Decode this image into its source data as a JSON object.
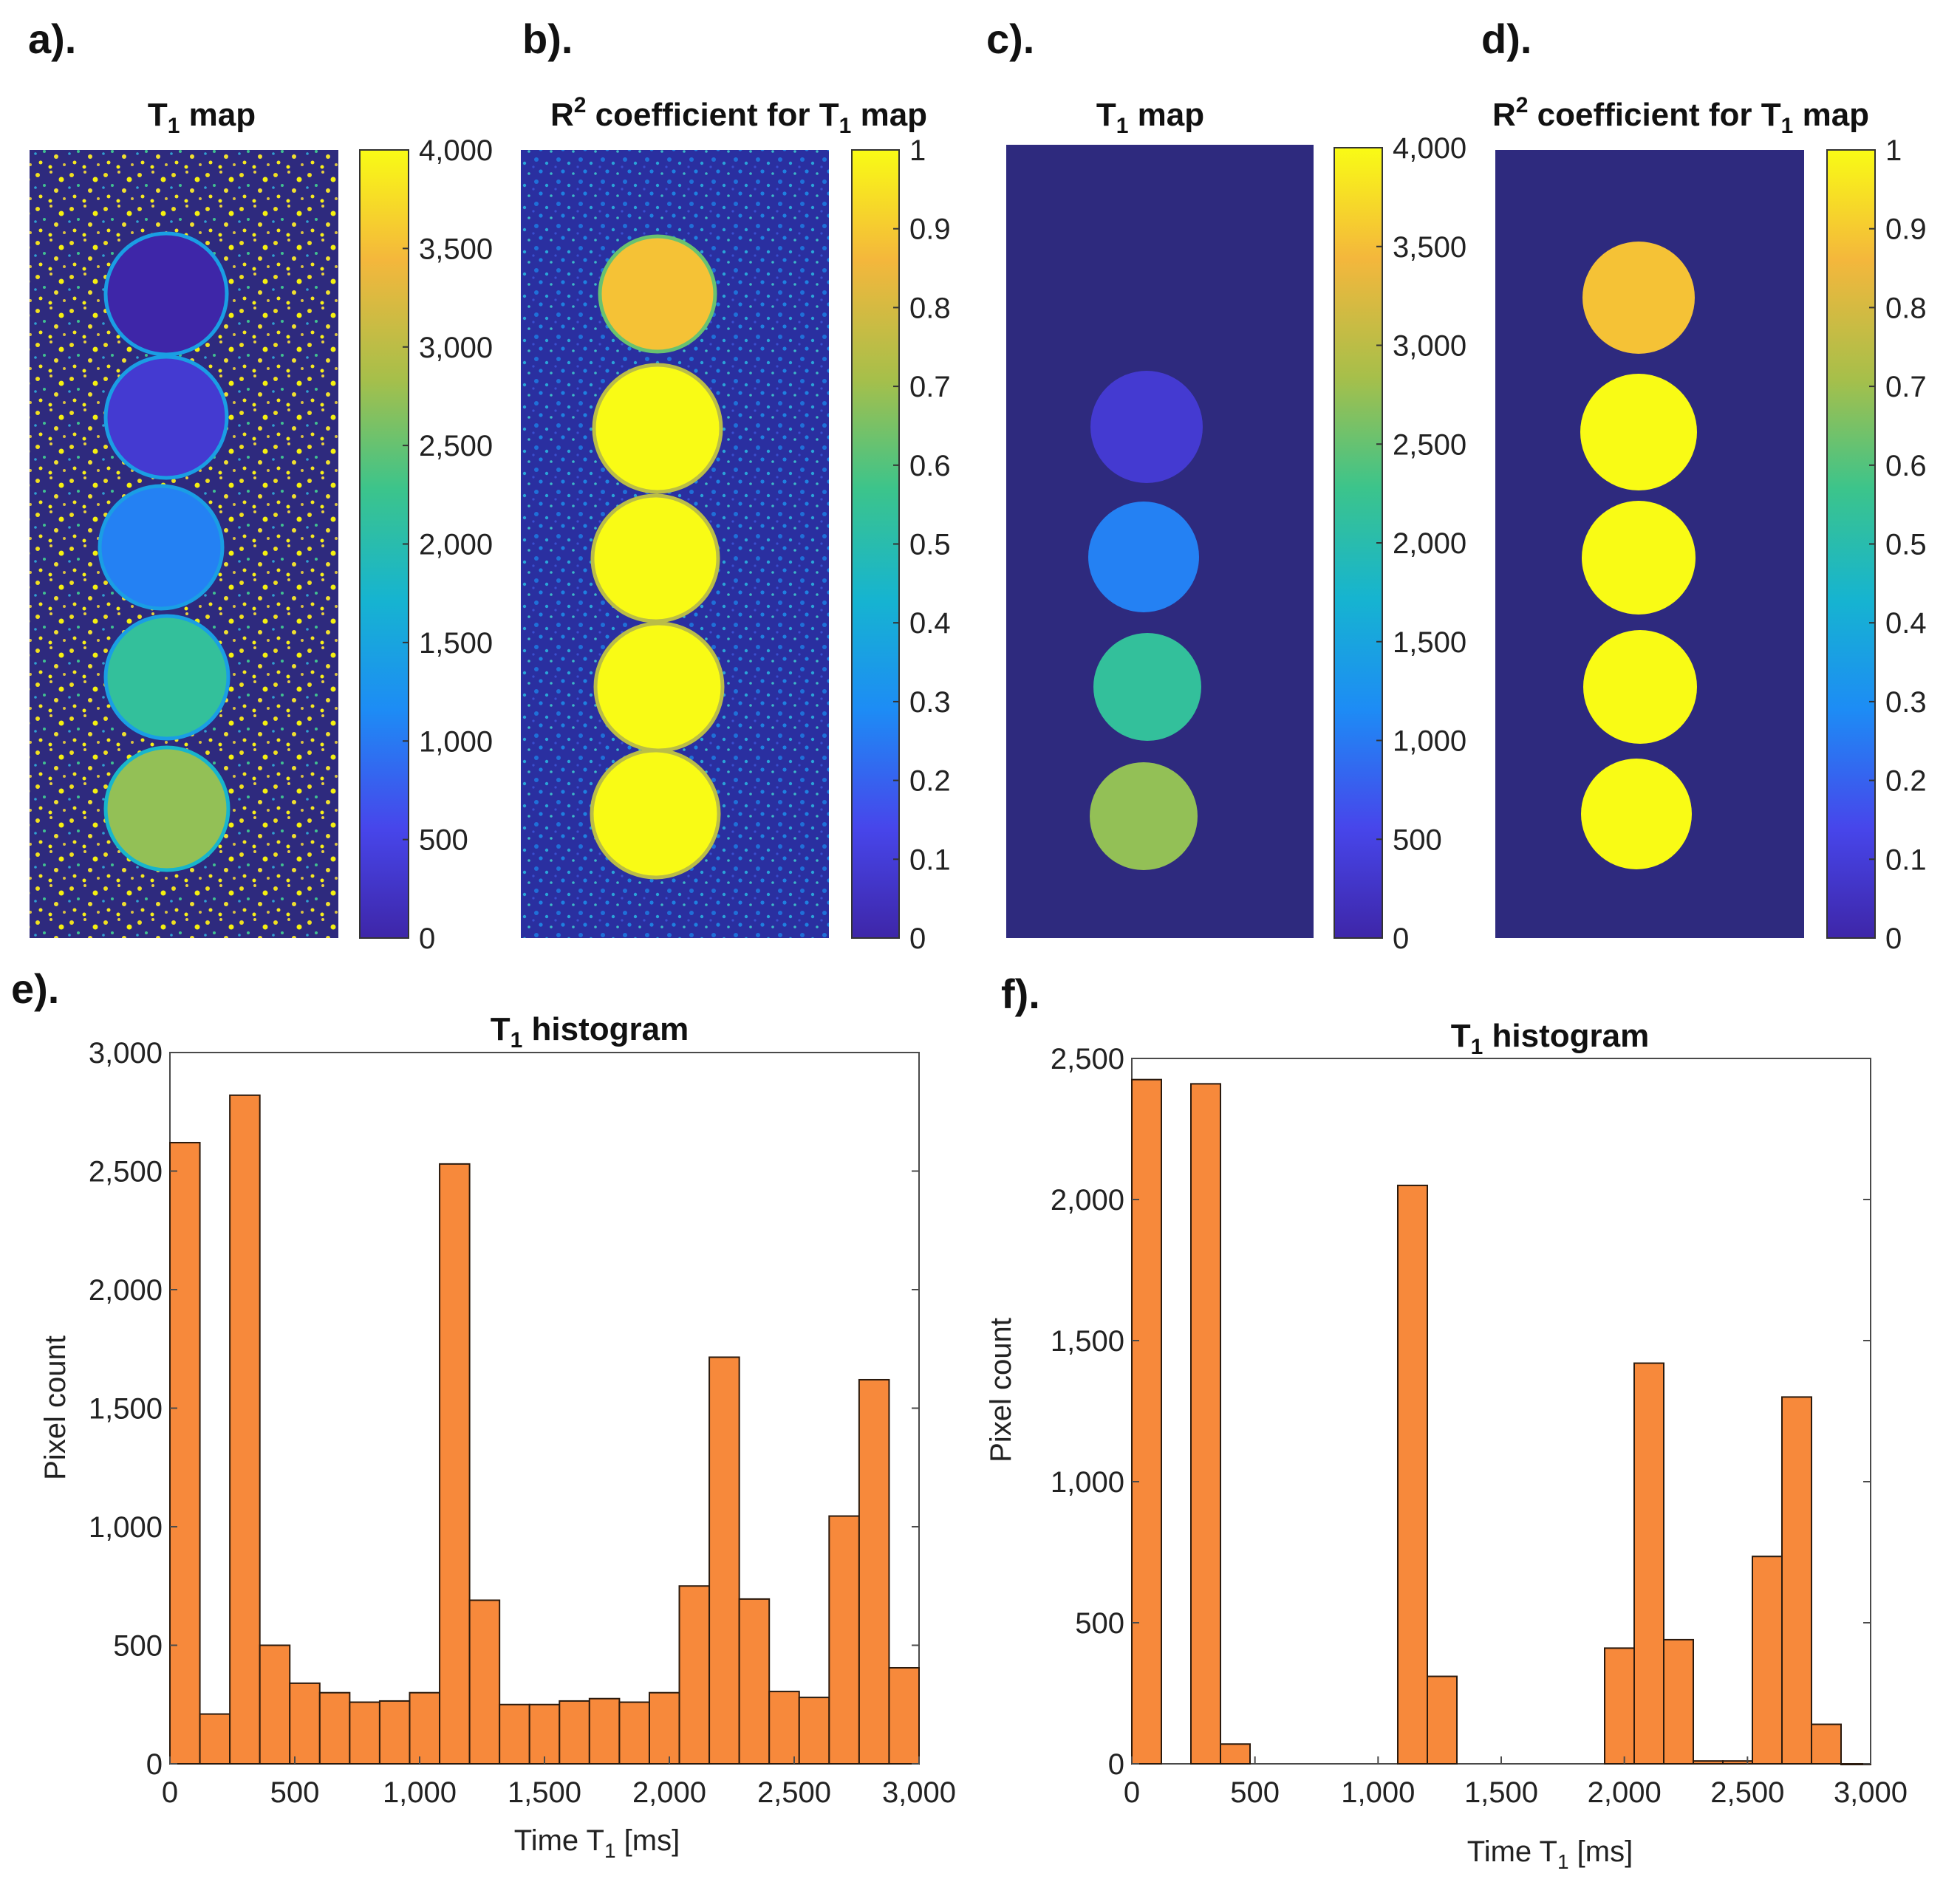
{
  "colors": {
    "background_dark": "#2e2a7e",
    "bar_fill": "#f7893b",
    "bar_stroke": "#2a1a0e",
    "colormap": [
      "#3e26a8",
      "#4746eb",
      "#1d8cf5",
      "#16b4d0",
      "#3cc48b",
      "#a7bf4a",
      "#f4b73c",
      "#f9fb15"
    ]
  },
  "panels": {
    "a": {
      "label": "a).",
      "title_main": "T",
      "title_sub": "1",
      "title_rest": " map",
      "colorbar_ticks": [
        "0",
        "500",
        "1,000",
        "1,500",
        "2,000",
        "2,500",
        "3,000",
        "3,500",
        "4,000"
      ],
      "colorbar_range": [
        0,
        4000
      ],
      "circle_values": [
        0,
        350,
        1050,
        2150,
        2750
      ]
    },
    "b": {
      "label": "b).",
      "title_main": "R",
      "title_sup": "2",
      "title_mid": " coefficient for T",
      "title_sub": "1",
      "title_rest": " map",
      "colorbar_ticks": [
        "0",
        "0.1",
        "0.2",
        "0.3",
        "0.4",
        "0.5",
        "0.6",
        "0.7",
        "0.8",
        "0.9",
        "1"
      ],
      "colorbar_range": [
        0,
        1
      ],
      "circle_values": [
        0.88,
        1,
        1,
        1,
        1
      ]
    },
    "c": {
      "label": "c).",
      "title_main": "T",
      "title_sub": "1",
      "title_rest": " map",
      "colorbar_ticks": [
        "0",
        "500",
        "1,000",
        "1,500",
        "2,000",
        "2,500",
        "3,000",
        "3,500",
        "4,000"
      ],
      "colorbar_range": [
        0,
        4000
      ],
      "circle_values": [
        0,
        350,
        1050,
        2150,
        2750
      ]
    },
    "d": {
      "label": "d).",
      "title_main": "R",
      "title_sup": "2",
      "title_mid": " coefficient for T",
      "title_sub": "1",
      "title_rest": " map",
      "colorbar_ticks": [
        "0",
        "0.1",
        "0.2",
        "0.3",
        "0.4",
        "0.5",
        "0.6",
        "0.7",
        "0.8",
        "0.9",
        "1"
      ],
      "colorbar_range": [
        0,
        1
      ],
      "circle_values": [
        0.88,
        1,
        1,
        1,
        1
      ]
    }
  },
  "chart_data": [
    {
      "id": "e",
      "label": "e).",
      "type": "bar",
      "title_main": "T",
      "title_sub": "1",
      "title_rest": " histogram",
      "xlabel_main": "Time T",
      "xlabel_sub": "1",
      "xlabel_rest": " [ms]",
      "ylabel": "Pixel count",
      "xlim": [
        0,
        3000
      ],
      "ylim": [
        0,
        3000
      ],
      "xticks": [
        "0",
        "500",
        "1,000",
        "1,500",
        "2,000",
        "2,500",
        "3,000"
      ],
      "yticks": [
        "0",
        "500",
        "1,000",
        "1,500",
        "2,000",
        "2,500",
        "3,000"
      ],
      "bin_width": 120,
      "bin_starts": [
        0,
        120,
        240,
        360,
        480,
        600,
        720,
        840,
        960,
        1080,
        1200,
        1320,
        1440,
        1560,
        1680,
        1800,
        1920,
        2040,
        2160,
        2280,
        2400,
        2520,
        2640,
        2760,
        2880
      ],
      "values": [
        2620,
        210,
        2820,
        500,
        340,
        300,
        260,
        265,
        300,
        2530,
        690,
        250,
        250,
        265,
        275,
        260,
        300,
        750,
        1715,
        695,
        305,
        280,
        1045,
        1620,
        405
      ]
    },
    {
      "id": "f",
      "label": "f).",
      "type": "bar",
      "title_main": "T",
      "title_sub": "1",
      "title_rest": " histogram",
      "xlabel_main": "Time T",
      "xlabel_sub": "1",
      "xlabel_rest": " [ms]",
      "ylabel": "Pixel count",
      "xlim": [
        0,
        3000
      ],
      "ylim": [
        0,
        2500
      ],
      "xticks": [
        "0",
        "500",
        "1,000",
        "1,500",
        "2,000",
        "2,500",
        "3,000"
      ],
      "yticks": [
        "0",
        "500",
        "1,000",
        "1,500",
        "2,000",
        "2,500"
      ],
      "bin_width": 120,
      "bin_starts": [
        0,
        240,
        360,
        1080,
        1200,
        1920,
        2040,
        2160,
        2280,
        2400,
        2520,
        2640,
        2760,
        2880
      ],
      "values": [
        2425,
        2410,
        70,
        2050,
        310,
        410,
        1420,
        440,
        10,
        10,
        735,
        1300,
        140,
        0
      ]
    }
  ]
}
